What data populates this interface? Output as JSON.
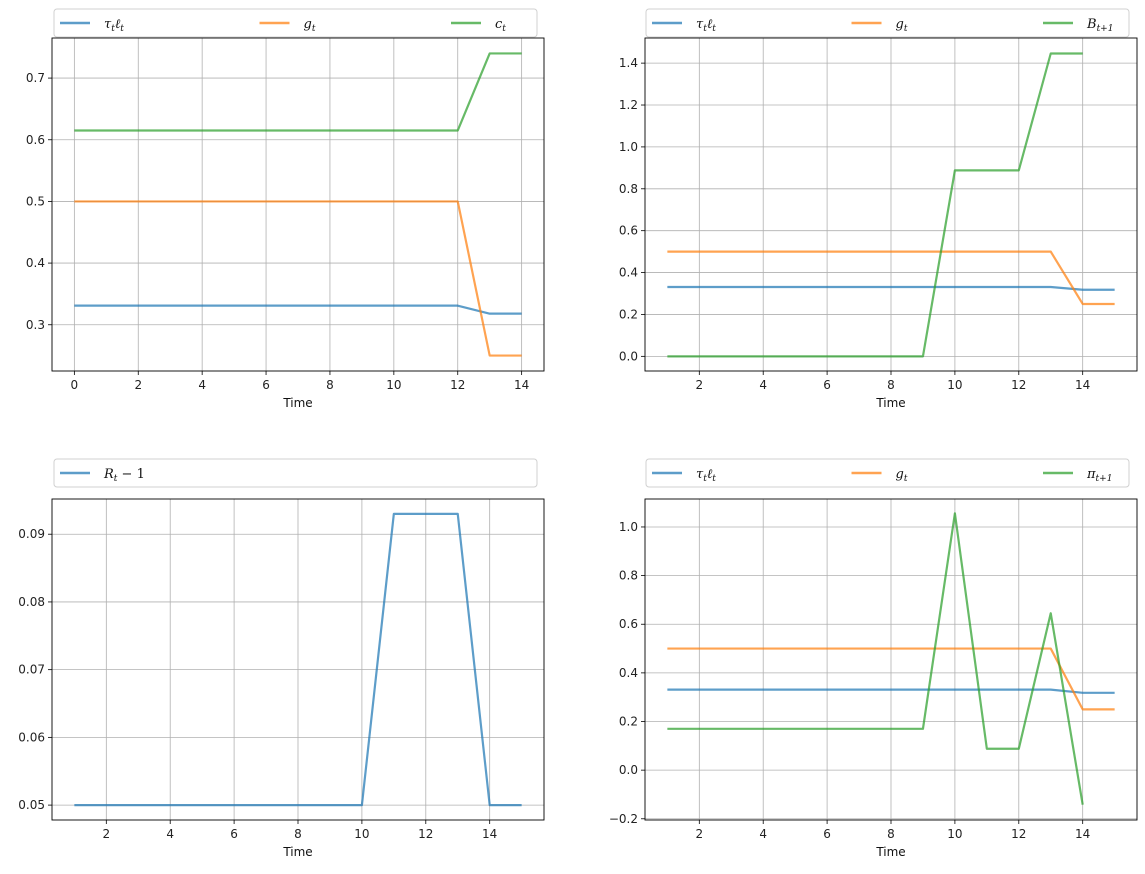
{
  "chart_data": [
    {
      "type": "line",
      "xlabel": "Time",
      "xlim": [
        -0.7,
        14.7
      ],
      "ylim": [
        0.225,
        0.765
      ],
      "xticks": [
        0,
        2,
        4,
        6,
        8,
        10,
        12,
        14
      ],
      "yticks": [
        0.3,
        0.4,
        0.5,
        0.6,
        0.7
      ],
      "ytick_decimals": 1,
      "grid": true,
      "legend_placement": "top-outside",
      "series": [
        {
          "name": "τtℓt",
          "name_main": "τ",
          "name_sub1": "t",
          "name_main2": "ℓ",
          "name_sub2": "t",
          "color": "#1f77b4",
          "x": [
            0,
            1,
            2,
            3,
            4,
            5,
            6,
            7,
            8,
            9,
            10,
            11,
            12,
            13,
            14
          ],
          "y": [
            0.331,
            0.331,
            0.331,
            0.331,
            0.331,
            0.331,
            0.331,
            0.331,
            0.331,
            0.331,
            0.331,
            0.331,
            0.331,
            0.318,
            0.318
          ]
        },
        {
          "name": "gt",
          "name_main": "g",
          "name_sub1": "t",
          "color": "#ff7f0e",
          "x": [
            0,
            1,
            2,
            3,
            4,
            5,
            6,
            7,
            8,
            9,
            10,
            11,
            12,
            13,
            14
          ],
          "y": [
            0.5,
            0.5,
            0.5,
            0.5,
            0.5,
            0.5,
            0.5,
            0.5,
            0.5,
            0.5,
            0.5,
            0.5,
            0.5,
            0.25,
            0.25
          ]
        },
        {
          "name": "ct",
          "name_main": "c",
          "name_sub1": "t",
          "color": "#2ca02c",
          "x": [
            0,
            1,
            2,
            3,
            4,
            5,
            6,
            7,
            8,
            9,
            10,
            11,
            12,
            13,
            14
          ],
          "y": [
            0.615,
            0.615,
            0.615,
            0.615,
            0.615,
            0.615,
            0.615,
            0.615,
            0.615,
            0.615,
            0.615,
            0.615,
            0.615,
            0.74,
            0.74
          ]
        }
      ]
    },
    {
      "type": "line",
      "xlabel": "Time",
      "xlim": [
        0.3,
        15.7
      ],
      "ylim": [
        -0.07,
        1.52
      ],
      "xticks": [
        2,
        4,
        6,
        8,
        10,
        12,
        14
      ],
      "yticks": [
        0.0,
        0.2,
        0.4,
        0.6,
        0.8,
        1.0,
        1.2,
        1.4
      ],
      "ytick_decimals": 1,
      "grid": true,
      "legend_placement": "top-outside",
      "series": [
        {
          "name": "τtℓt",
          "name_main": "τ",
          "name_sub1": "t",
          "name_main2": "ℓ",
          "name_sub2": "t",
          "color": "#1f77b4",
          "x": [
            1,
            2,
            3,
            4,
            5,
            6,
            7,
            8,
            9,
            10,
            11,
            12,
            13,
            14,
            15
          ],
          "y": [
            0.331,
            0.331,
            0.331,
            0.331,
            0.331,
            0.331,
            0.331,
            0.331,
            0.331,
            0.331,
            0.331,
            0.331,
            0.331,
            0.318,
            0.318
          ]
        },
        {
          "name": "gt",
          "name_main": "g",
          "name_sub1": "t",
          "color": "#ff7f0e",
          "x": [
            1,
            2,
            3,
            4,
            5,
            6,
            7,
            8,
            9,
            10,
            11,
            12,
            13,
            14,
            15
          ],
          "y": [
            0.5,
            0.5,
            0.5,
            0.5,
            0.5,
            0.5,
            0.5,
            0.5,
            0.5,
            0.5,
            0.5,
            0.5,
            0.5,
            0.25,
            0.25
          ]
        },
        {
          "name": "Bt+1",
          "name_main": "B",
          "name_sub1": "t+1",
          "color": "#2ca02c",
          "x": [
            1,
            2,
            3,
            4,
            5,
            6,
            7,
            8,
            9,
            10,
            11,
            12,
            13,
            14
          ],
          "y": [
            0,
            0,
            0,
            0,
            0,
            0,
            0,
            0,
            0,
            0.888,
            0.888,
            0.888,
            1.446,
            1.446
          ]
        }
      ]
    },
    {
      "type": "line",
      "xlabel": "Time",
      "xlim": [
        0.3,
        15.7
      ],
      "ylim": [
        0.0478,
        0.0952
      ],
      "xticks": [
        2,
        4,
        6,
        8,
        10,
        12,
        14
      ],
      "yticks": [
        0.05,
        0.06,
        0.07,
        0.08,
        0.09
      ],
      "ytick_decimals": 2,
      "grid": true,
      "legend_placement": "top-outside",
      "series": [
        {
          "name": "Rt−1",
          "name_main": "R",
          "name_sub1": "t",
          "name_tail": " − 1",
          "color": "#1f77b4",
          "x": [
            1,
            2,
            3,
            4,
            5,
            6,
            7,
            8,
            9,
            10,
            11,
            12,
            13,
            14,
            15
          ],
          "y": [
            0.05,
            0.05,
            0.05,
            0.05,
            0.05,
            0.05,
            0.05,
            0.05,
            0.05,
            0.05,
            0.093,
            0.093,
            0.093,
            0.05,
            0.05
          ]
        }
      ]
    },
    {
      "type": "line",
      "xlabel": "Time",
      "xlim": [
        0.3,
        15.7
      ],
      "ylim": [
        -0.205,
        1.115
      ],
      "xticks": [
        2,
        4,
        6,
        8,
        10,
        12,
        14
      ],
      "yticks": [
        -0.2,
        0.0,
        0.2,
        0.4,
        0.6,
        0.8,
        1.0
      ],
      "ytick_decimals": 1,
      "grid": true,
      "legend_placement": "top-outside",
      "series": [
        {
          "name": "τtℓt",
          "name_main": "τ",
          "name_sub1": "t",
          "name_main2": "ℓ",
          "name_sub2": "t",
          "color": "#1f77b4",
          "x": [
            1,
            2,
            3,
            4,
            5,
            6,
            7,
            8,
            9,
            10,
            11,
            12,
            13,
            14,
            15
          ],
          "y": [
            0.331,
            0.331,
            0.331,
            0.331,
            0.331,
            0.331,
            0.331,
            0.331,
            0.331,
            0.331,
            0.331,
            0.331,
            0.331,
            0.318,
            0.318
          ]
        },
        {
          "name": "gt",
          "name_main": "g",
          "name_sub1": "t",
          "color": "#ff7f0e",
          "x": [
            1,
            2,
            3,
            4,
            5,
            6,
            7,
            8,
            9,
            10,
            11,
            12,
            13,
            14,
            15
          ],
          "y": [
            0.5,
            0.5,
            0.5,
            0.5,
            0.5,
            0.5,
            0.5,
            0.5,
            0.5,
            0.5,
            0.5,
            0.5,
            0.5,
            0.25,
            0.25
          ]
        },
        {
          "name": "πt+1",
          "name_main": "π",
          "name_sub1": "t+1",
          "color": "#2ca02c",
          "x": [
            1,
            2,
            3,
            4,
            5,
            6,
            7,
            8,
            9,
            10,
            11,
            12,
            13,
            14
          ],
          "y": [
            0.17,
            0.17,
            0.17,
            0.17,
            0.17,
            0.17,
            0.17,
            0.17,
            0.17,
            1.056,
            0.088,
            0.088,
            0.645,
            -0.142
          ]
        }
      ]
    }
  ]
}
